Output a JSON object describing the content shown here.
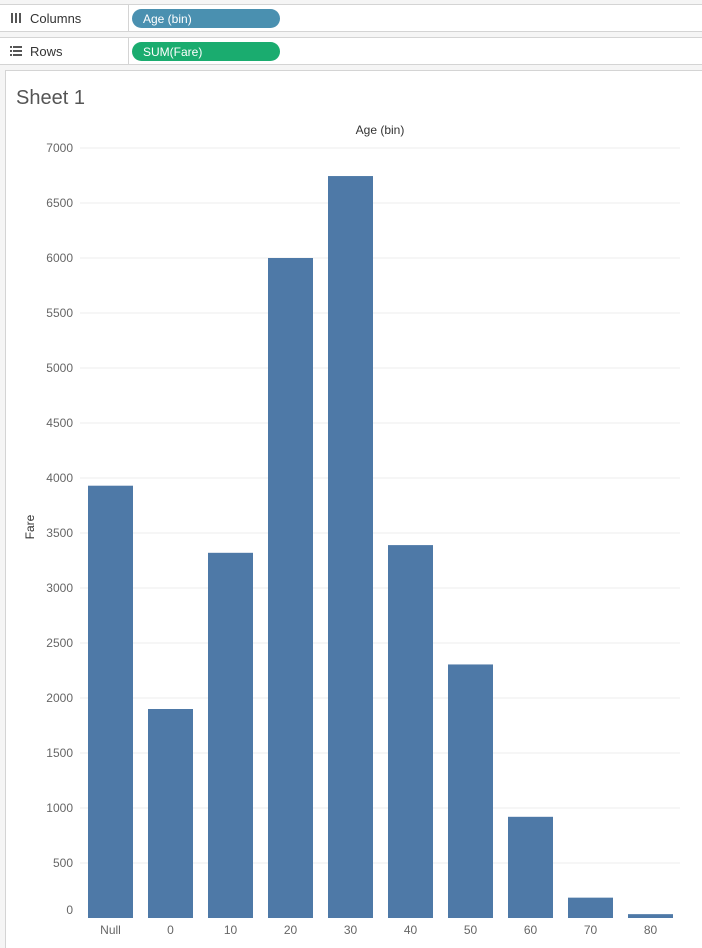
{
  "shelves": {
    "columns": {
      "label": "Columns",
      "icon": "columns-icon",
      "pill": "Age (bin)",
      "pill_color": "#4a90b0"
    },
    "rows": {
      "label": "Rows",
      "icon": "rows-icon",
      "pill": "SUM(Fare)",
      "pill_color": "#1aac6f"
    }
  },
  "sheet": {
    "title": "Sheet 1"
  },
  "chart_data": {
    "type": "bar",
    "title": "",
    "xlabel": "Age (bin)",
    "ylabel": "Fare",
    "categories": [
      "Null",
      "0",
      "10",
      "20",
      "30",
      "40",
      "50",
      "60",
      "70",
      "80"
    ],
    "values": [
      3930,
      1900,
      3320,
      6000,
      6745,
      3390,
      2305,
      920,
      185,
      35
    ],
    "ylim": [
      0,
      7000
    ],
    "yticks": [
      0,
      500,
      1000,
      1500,
      2000,
      2500,
      3000,
      3500,
      4000,
      4500,
      5000,
      5500,
      6000,
      6500,
      7000
    ],
    "bar_color": "#4e79a7",
    "grid": true,
    "legend": "none"
  }
}
